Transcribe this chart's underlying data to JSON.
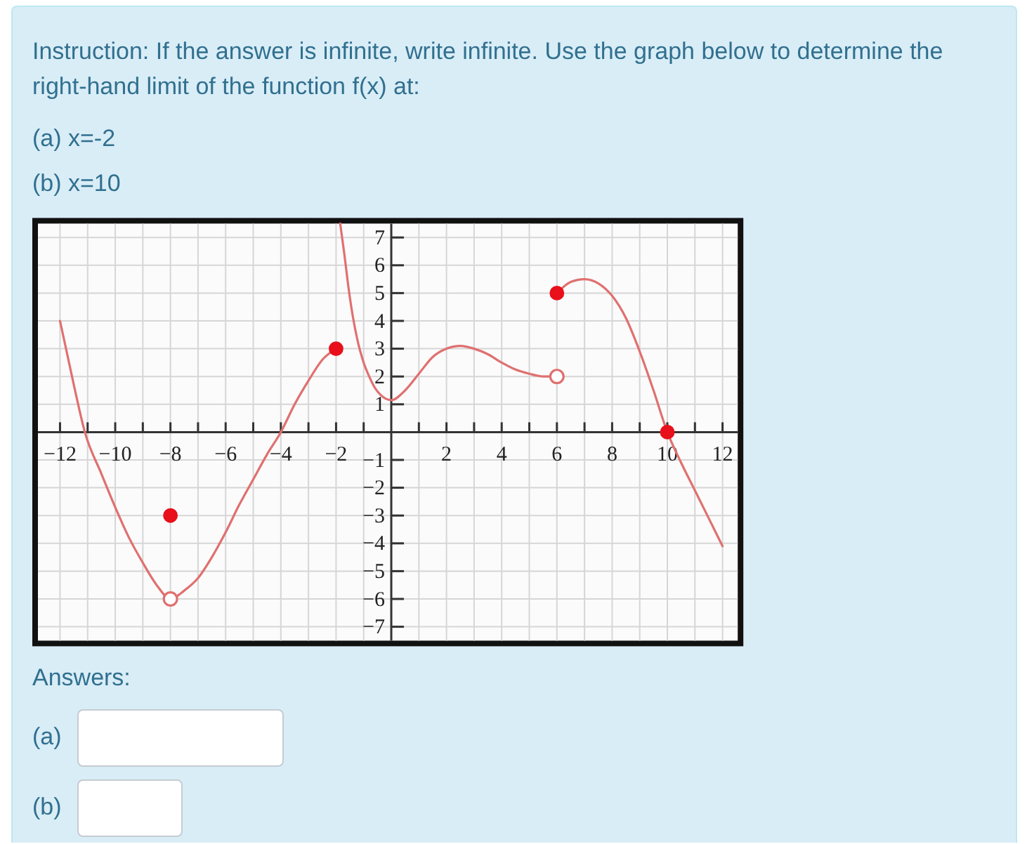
{
  "chart_data": {
    "type": "line",
    "title": "Instruction: If the answer is infinite, write infinite. Use the graph below to determine the right-hand limit of the function f(x) at:",
    "annotations": [
      "(a) x=-2",
      "(b) x=10",
      "Answers:",
      "(a)",
      "(b)"
    ],
    "xlim": [
      -12.8,
      12.55
    ],
    "ylim": [
      -7.5,
      7.5
    ],
    "xticks": [
      -12,
      {
        "value": -11,
        "label": null
      },
      -10,
      {
        "value": -9,
        "label": null
      },
      -8,
      {
        "value": -7,
        "label": null
      },
      -6,
      {
        "value": -5,
        "label": null
      },
      -4,
      {
        "value": -3,
        "label": null
      },
      -2,
      {
        "value": -1,
        "label": null
      },
      {
        "value": 1,
        "label": null
      },
      2,
      {
        "value": 3,
        "label": null
      },
      4,
      {
        "value": 5,
        "label": null
      },
      6,
      {
        "value": 7,
        "label": null
      },
      8,
      {
        "value": 9,
        "label": null
      },
      10,
      {
        "value": 11,
        "label": null
      },
      12
    ],
    "yticks": [
      -7,
      -6,
      -5,
      -4,
      -3,
      -2,
      -1,
      1,
      2,
      3,
      4,
      5,
      6,
      7
    ],
    "grid": true,
    "series": [
      {
        "color": "#e07070",
        "x": [
          -12,
          -11.5,
          -11.1,
          -10.5,
          -10,
          -9.5,
          -9,
          -8.5,
          -8,
          -7.5,
          -7,
          -6.5,
          -6,
          -5.5,
          -5,
          -4.5,
          -4,
          -3.5,
          -3,
          -2.5,
          -2
        ],
        "values": [
          4,
          1.7,
          0,
          -1.5,
          -2.7,
          -3.8,
          -4.7,
          -5.5,
          -6,
          -5.7,
          -5.25,
          -4.5,
          -3.6,
          -2.6,
          -1.7,
          -0.8,
          0,
          1,
          1.85,
          2.6,
          3
        ]
      },
      {
        "color": "#e07070",
        "x": [
          -1.85,
          -1.7,
          -1.55,
          -1.4,
          -1.2,
          -1,
          -0.8,
          -0.6,
          -0.4,
          -0.2,
          0,
          0.5,
          1,
          1.5,
          2,
          2.5,
          3,
          3.5,
          4,
          4.5,
          5,
          5.5,
          6
        ],
        "values": [
          7.5,
          6.4,
          5.2,
          4.2,
          3.2,
          2.5,
          2,
          1.6,
          1.35,
          1.2,
          1.15,
          1.5,
          2.1,
          2.7,
          3,
          3.1,
          3,
          2.8,
          2.5,
          2.25,
          2.1,
          2,
          2
        ]
      },
      {
        "color": "#e07070",
        "x": [
          6,
          6.5,
          7,
          7.5,
          8,
          8.5,
          9,
          9.5,
          10,
          10.5,
          11,
          11.5,
          12
        ],
        "values": [
          5,
          5.4,
          5.5,
          5.35,
          4.9,
          4.1,
          2.9,
          1.5,
          0,
          -1.1,
          -2.1,
          -3.1,
          -4.1
        ]
      },
      {
        "type": "scatter",
        "marker": "circle",
        "color": "#e8101a",
        "x": [
          -8,
          -2,
          6,
          10
        ],
        "values": [
          -3,
          3,
          5,
          0
        ]
      },
      {
        "type": "scatter",
        "marker": "circle",
        "color": "#ffffff",
        "x": [
          -8,
          6
        ],
        "values": [
          -6,
          2
        ]
      }
    ]
  }
}
